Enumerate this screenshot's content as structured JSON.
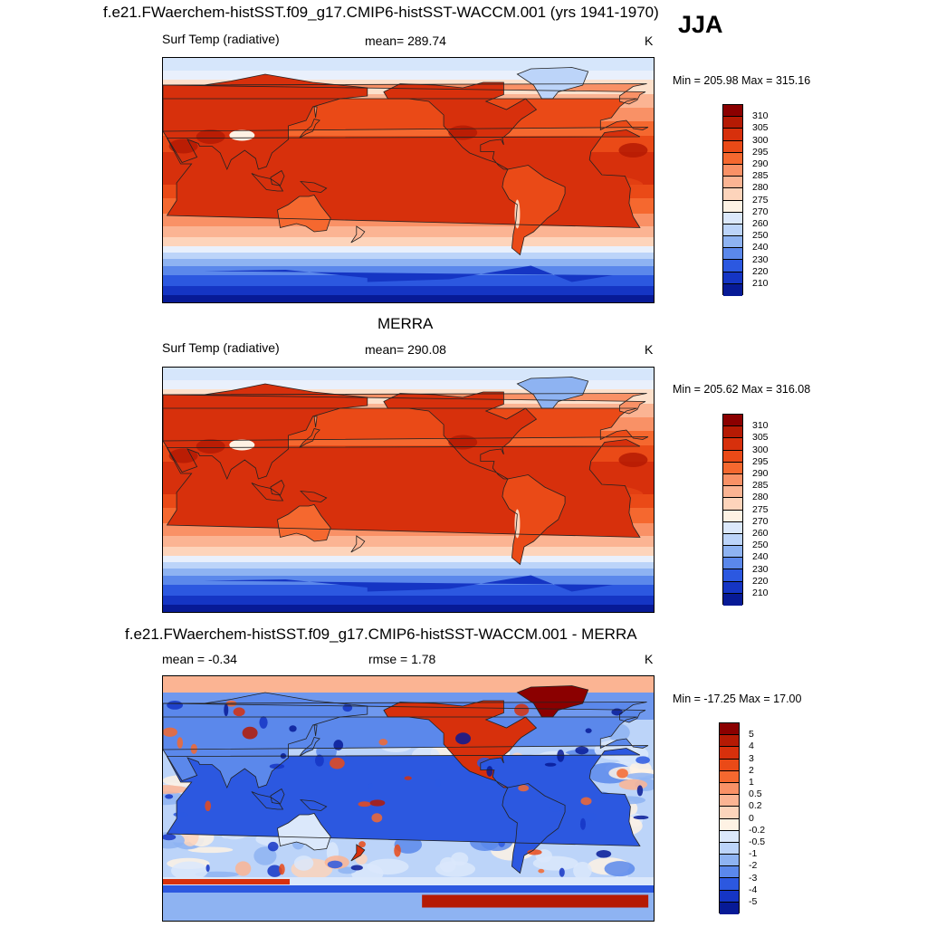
{
  "figure": {
    "season": "JJA",
    "units": "K"
  },
  "panels": [
    {
      "title": "f.e21.FWaerchem-histSST.f09_g17.CMIP6-histSST-WACCM.001 (yrs 1941-1970)",
      "left_label": "Surf Temp (radiative)",
      "center_label": "mean= 289.74",
      "units": "K",
      "minmax": "Min = 205.98 Max = 315.16",
      "kind": "abs",
      "colorbar": {
        "labels": [
          "310",
          "305",
          "300",
          "295",
          "290",
          "285",
          "280",
          "275",
          "270",
          "260",
          "250",
          "240",
          "230",
          "220",
          "210"
        ],
        "colors": [
          "#8b0000",
          "#b51a04",
          "#d7300c",
          "#ea4a17",
          "#f5682f",
          "#f99166",
          "#fbb493",
          "#fdd4bb",
          "#fef2e4",
          "#dbe8fb",
          "#bcd4f9",
          "#8eb3f2",
          "#5b88eb",
          "#2c58e0",
          "#1535c4",
          "#071a96"
        ]
      }
    },
    {
      "title": "MERRA",
      "left_label": "Surf Temp (radiative)",
      "center_label": "mean= 290.08",
      "units": "K",
      "minmax": "Min = 205.62 Max = 316.08",
      "kind": "abs",
      "colorbar": {
        "labels": [
          "310",
          "305",
          "300",
          "295",
          "290",
          "285",
          "280",
          "275",
          "270",
          "260",
          "250",
          "240",
          "230",
          "220",
          "210"
        ],
        "colors": [
          "#8b0000",
          "#b51a04",
          "#d7300c",
          "#ea4a17",
          "#f5682f",
          "#f99166",
          "#fbb493",
          "#fdd4bb",
          "#fef2e4",
          "#dbe8fb",
          "#bcd4f9",
          "#8eb3f2",
          "#5b88eb",
          "#2c58e0",
          "#1535c4",
          "#071a96"
        ]
      }
    },
    {
      "title": "f.e21.FWaerchem-histSST.f09_g17.CMIP6-histSST-WACCM.001 - MERRA",
      "left_label": "mean =  -0.34",
      "center_label": "rmse =   1.78",
      "units": "K",
      "minmax": "Min = -17.25 Max =  17.00",
      "kind": "diff",
      "colorbar": {
        "labels": [
          "5",
          "4",
          "3",
          "2",
          "1",
          "0.5",
          "0.2",
          "0",
          "-0.2",
          "-0.5",
          "-1",
          "-2",
          "-3",
          "-4",
          "-5"
        ],
        "colors": [
          "#8b0000",
          "#b51a04",
          "#d7300c",
          "#ea4a17",
          "#f5682f",
          "#f99166",
          "#fbb493",
          "#fdd4bb",
          "#fef2e4",
          "#dbe8fb",
          "#bcd4f9",
          "#8eb3f2",
          "#5b88eb",
          "#2c58e0",
          "#1535c4",
          "#071a96"
        ]
      }
    }
  ]
}
